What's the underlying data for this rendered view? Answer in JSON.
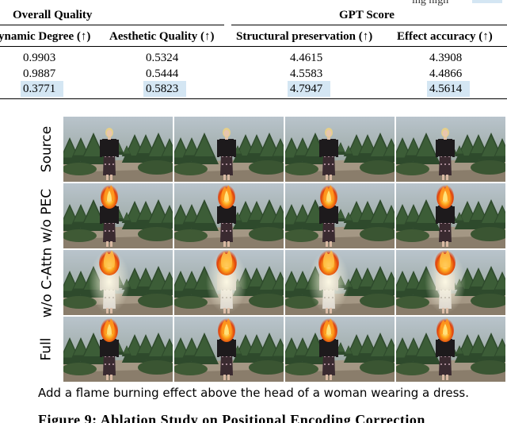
{
  "table": {
    "top_fragment": "ing high",
    "groups": [
      {
        "label": "Overall Quality"
      },
      {
        "label": "GPT Score"
      }
    ],
    "columns": [
      {
        "label": "ynamic Degree (↑)"
      },
      {
        "label": "Aesthetic Quality (↑)"
      },
      {
        "label": "Structural preservation (↑)"
      },
      {
        "label": "Effect accuracy (↑)"
      }
    ],
    "rows": [
      {
        "values": [
          "0.9903",
          "0.5324",
          "4.4615",
          "4.3908"
        ]
      },
      {
        "values": [
          "0.9887",
          "0.5444",
          "4.5583",
          "4.4866"
        ]
      },
      {
        "values": [
          "0.3771",
          "0.5823",
          "4.7947",
          "4.5614"
        ],
        "highlight": true
      }
    ],
    "highlight_color": "#d4e6f3"
  },
  "figure": {
    "rows": [
      {
        "label": "Source",
        "effect": "none"
      },
      {
        "label": "w/o PEC",
        "effect": "flame"
      },
      {
        "label": "w/o C-Attn",
        "effect": "bright"
      },
      {
        "label": "Full",
        "effect": "flame"
      }
    ],
    "frames_per_row": 4,
    "caption": "Add a flame burning effect above the head of a woman wearing a dress.",
    "figure_caption": "Figure 9: Ablation Study on Positional Encoding Correction"
  }
}
